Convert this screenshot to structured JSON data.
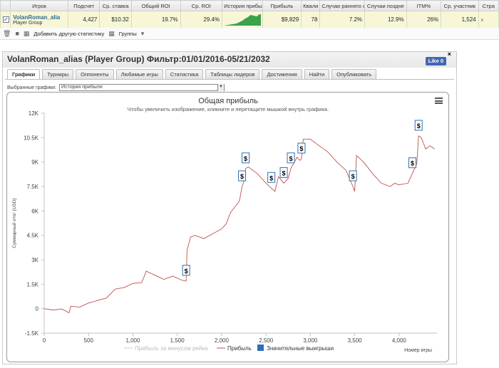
{
  "table": {
    "headers": [
      "",
      "Игрок",
      "Подсчет",
      "Ср. ставка",
      "Общий ROI",
      "Ср. ROI",
      "История прибыли",
      "Прибыль",
      "Квали",
      "Случаи раннего о",
      "Случаи поздне",
      "ITM%",
      "Ср. участник",
      "Стра"
    ],
    "row": {
      "checked": "✓",
      "player_name": "VolanRoman_alia",
      "player_group": "Player Group",
      "count": "4,427",
      "avg_stake": "$10.32",
      "total_roi": "19.7%",
      "avg_roi": "29.4%",
      "profit": "$9,829",
      "quali": "78",
      "early": "7.2%",
      "late": "12.9%",
      "itm": "26%",
      "avg_entrants": "1,524",
      "x": "x"
    }
  },
  "toolbar": {
    "add_stat": "Добавить другую статистику",
    "groups": "Группы"
  },
  "panel": {
    "title": "VolanRoman_alias (Player Group) Фильтр:01/01/2016-05/21/2032",
    "like": "Like 0",
    "close": "×",
    "tabs": [
      "Графики",
      "Турниры",
      "Оппоненты",
      "Любимые игры",
      "Статистика",
      "Таблицы лидеров",
      "Достижения",
      "Найти",
      "Опубликовать"
    ],
    "selected_charts_label": "Выбранные графики:",
    "selected_chart": "История прибыли"
  },
  "chart_data": {
    "type": "line",
    "title": "Общая прибыль",
    "subtitle": "Чтобы увеличить изображение, кликните и перетащите мышкой внутрь графика.",
    "ylabel": "Суммарный итог (USD)",
    "xlabel": "Номер игры",
    "xlim": [
      0,
      4427
    ],
    "ylim": [
      -1500,
      12000
    ],
    "x_ticks": [
      0,
      500,
      1000,
      1500,
      2000,
      2500,
      3000,
      3500,
      4000
    ],
    "x_tick_labels": [
      "0",
      "500",
      "1,000",
      "1,500",
      "2,000",
      "2,500",
      "3,000",
      "3,500",
      "4,000"
    ],
    "y_ticks": [
      -1500,
      0,
      1500,
      3000,
      4500,
      6000,
      7500,
      9000,
      10500,
      12000
    ],
    "y_tick_labels": [
      "-1.5K",
      "0",
      "1.5K",
      "3K",
      "4.5K",
      "6K",
      "7.5K",
      "9K",
      "10.5K",
      "12K"
    ],
    "series": [
      {
        "name": "Прибыль",
        "color": "#c0504d",
        "points": [
          [
            0,
            0
          ],
          [
            100,
            -80
          ],
          [
            200,
            -20
          ],
          [
            280,
            -250
          ],
          [
            300,
            150
          ],
          [
            400,
            100
          ],
          [
            500,
            350
          ],
          [
            600,
            500
          ],
          [
            700,
            650
          ],
          [
            800,
            1200
          ],
          [
            900,
            1300
          ],
          [
            1000,
            1550
          ],
          [
            1100,
            1600
          ],
          [
            1150,
            2300
          ],
          [
            1250,
            2050
          ],
          [
            1350,
            1800
          ],
          [
            1450,
            2000
          ],
          [
            1550,
            1750
          ],
          [
            1600,
            1700
          ],
          [
            1610,
            3600
          ],
          [
            1650,
            4400
          ],
          [
            1700,
            4500
          ],
          [
            1800,
            4300
          ],
          [
            1900,
            4600
          ],
          [
            2000,
            4900
          ],
          [
            2050,
            5200
          ],
          [
            2100,
            5900
          ],
          [
            2200,
            6600
          ],
          [
            2230,
            7500
          ],
          [
            2250,
            7800
          ],
          [
            2270,
            8600
          ],
          [
            2300,
            8700
          ],
          [
            2400,
            8300
          ],
          [
            2500,
            7700
          ],
          [
            2560,
            7400
          ],
          [
            2600,
            7200
          ],
          [
            2640,
            8100
          ],
          [
            2700,
            7700
          ],
          [
            2750,
            8000
          ],
          [
            2780,
            8600
          ],
          [
            2820,
            9000
          ],
          [
            2850,
            9300
          ],
          [
            2880,
            9100
          ],
          [
            2900,
            9200
          ],
          [
            2920,
            10400
          ],
          [
            3000,
            10400
          ],
          [
            3100,
            10000
          ],
          [
            3200,
            9600
          ],
          [
            3300,
            9000
          ],
          [
            3400,
            8500
          ],
          [
            3480,
            7500
          ],
          [
            3500,
            7200
          ],
          [
            3520,
            9400
          ],
          [
            3600,
            9000
          ],
          [
            3700,
            8300
          ],
          [
            3800,
            7700
          ],
          [
            3900,
            7500
          ],
          [
            3950,
            7700
          ],
          [
            4000,
            7600
          ],
          [
            4100,
            7700
          ],
          [
            4150,
            8300
          ],
          [
            4200,
            8900
          ],
          [
            4220,
            10600
          ],
          [
            4250,
            10500
          ],
          [
            4300,
            9800
          ],
          [
            4350,
            10000
          ],
          [
            4400,
            9800
          ]
        ]
      },
      {
        "name": "Прибыль за минусом рейка",
        "color": "#cccccc"
      }
    ],
    "markers": {
      "name": "Значительные выигрыши",
      "color": "#2f6fb7",
      "symbol": "$",
      "x": [
        1600,
        2230,
        2270,
        2560,
        2700,
        2780,
        2900,
        3480,
        4150,
        4220
      ]
    },
    "legend": [
      "Прибыль за минусом рейка",
      "Прибыль",
      "Значительные выигрыши"
    ],
    "legend_position": "bottom",
    "grid": false
  }
}
